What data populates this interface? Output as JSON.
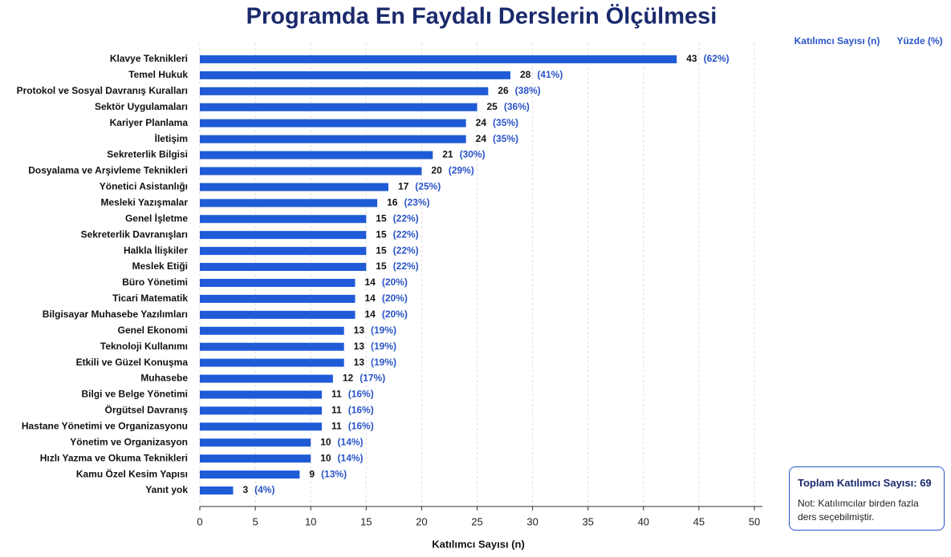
{
  "chart_data": {
    "type": "hbar",
    "title": "Programda En Faydalı Derslerin Ölçülmesi",
    "count_header": "Katılımcı Sayısı (n)",
    "percent_header": "Yüzde (%)",
    "xlabel": "Katılımcı Sayısı (n)",
    "categories": [
      "Klavye Teknikleri",
      "Temel Hukuk",
      "Protokol ve Sosyal Davranış Kuralları",
      "Sektör Uygulamaları",
      "Kariyer Planlama",
      "İletişim",
      "Sekreterlik Bilgisi",
      "Dosyalama ve Arşivleme Teknikleri",
      "Yönetici Asistanlığı",
      "Mesleki Yazışmalar",
      "Genel İşletme",
      "Sekreterlik Davranışları",
      "Halkla İlişkiler",
      "Meslek Etiği",
      "Büro Yönetimi",
      "Ticari Matematik",
      "Bilgisayar Muhasebe Yazılımları",
      "Genel Ekonomi",
      "Teknoloji Kullanımı",
      "Etkili ve Güzel Konuşma",
      "Muhasebe",
      "Bilgi ve Belge Yönetimi",
      "Örgütsel Davranış",
      "Hastane Yönetimi ve Organizasyonu",
      "Yönetim ve Organizasyon",
      "Hızlı Yazma ve Okuma Teknikleri",
      "Kamu Özel Kesim Yapısı",
      "Yanıt yok"
    ],
    "values": [
      43,
      28,
      26,
      25,
      24,
      24,
      21,
      20,
      17,
      16,
      15,
      15,
      15,
      15,
      14,
      14,
      14,
      13,
      13,
      13,
      12,
      11,
      11,
      11,
      10,
      10,
      9,
      3
    ],
    "percent_labels": [
      "(62%)",
      "(41%)",
      "(38%)",
      "(36%)",
      "(35%)",
      "(35%)",
      "(30%)",
      "(29%)",
      "(25%)",
      "(23%)",
      "(22%)",
      "(22%)",
      "(22%)",
      "(22%)",
      "(20%)",
      "(20%)",
      "(20%)",
      "(19%)",
      "(19%)",
      "(19%)",
      "(17%)",
      "(16%)",
      "(16%)",
      "(16%)",
      "(14%)",
      "(14%)",
      "(13%)",
      "(4%)"
    ],
    "color": "#1f5bd6",
    "xlim": [
      0,
      50
    ],
    "xticks": [
      0,
      5,
      10,
      15,
      20,
      25,
      30,
      35,
      40,
      45,
      50
    ],
    "grid": true,
    "total_label": "Toplam Katılımcı Sayısı: 69",
    "note": "Not: Katılımcılar birden fazla ders seçebilmiştir."
  }
}
